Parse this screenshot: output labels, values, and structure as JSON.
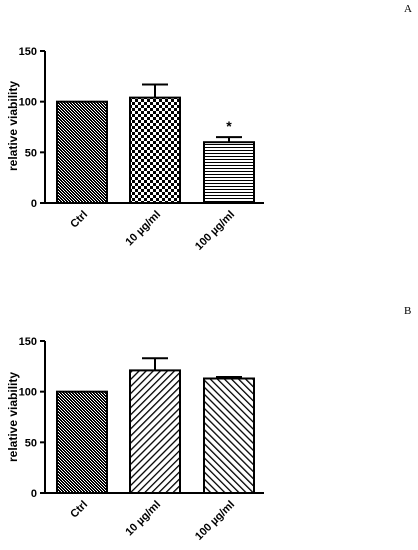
{
  "chart_data": [
    {
      "panel_label": "A",
      "type": "bar",
      "categories": [
        "Ctrl",
        "10 µg/ml",
        "100 µg/ml"
      ],
      "values": [
        100,
        104,
        60
      ],
      "errors": [
        0,
        13,
        5
      ],
      "patterns": [
        "dense-dither",
        "checker",
        "horizontal-lines"
      ],
      "annotations": [
        "",
        "",
        "*"
      ],
      "ylabel": "relative viability",
      "ylim": [
        0,
        150
      ],
      "yticks": [
        0,
        50,
        100,
        150
      ],
      "xlabel_rotation": -45,
      "grid": false
    },
    {
      "panel_label": "B",
      "type": "bar",
      "categories": [
        "Ctrl",
        "10 µg/ml",
        "100 µg/ml"
      ],
      "values": [
        100,
        121,
        113
      ],
      "errors": [
        0,
        12,
        1.5
      ],
      "patterns": [
        "dense-dither",
        "diagonal-up",
        "diagonal-down"
      ],
      "annotations": [
        "",
        "",
        ""
      ],
      "ylabel": "relative viability",
      "ylim": [
        0,
        150
      ],
      "yticks": [
        0,
        50,
        100,
        150
      ],
      "xlabel_rotation": -45,
      "grid": false
    }
  ]
}
